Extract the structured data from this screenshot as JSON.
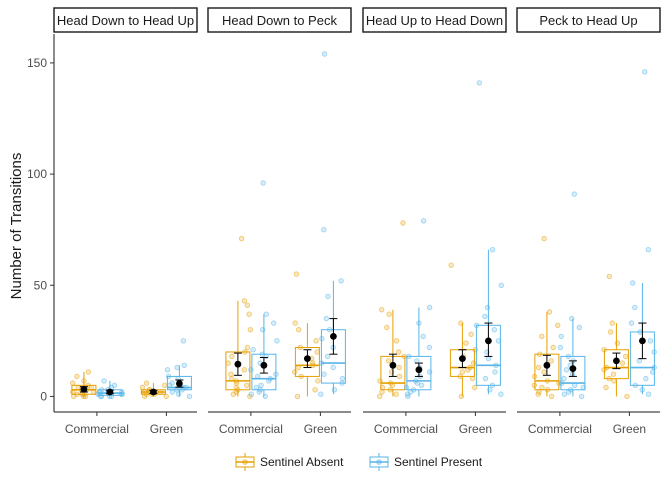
{
  "chart_data": {
    "type": "box",
    "ylabel": "Number of Transitions",
    "xlabel": "",
    "ylim": [
      -7,
      163
    ],
    "yticks": [
      0,
      50,
      100,
      150
    ],
    "categories": [
      "Commercial",
      "Green"
    ],
    "legend": {
      "placement": "bottom",
      "entries": [
        {
          "name": "Sentinel Absent",
          "color": "#E69F00"
        },
        {
          "name": "Sentinel Present",
          "color": "#56B4E9"
        }
      ]
    },
    "mean_color": "#000000",
    "panels": [
      {
        "title": "Head Down to Head Up",
        "groups": [
          {
            "category": "Commercial",
            "series": "Sentinel Absent",
            "box": {
              "min": 0,
              "q1": 1,
              "median": 3,
              "q3": 5,
              "max": 11
            },
            "mean": 3.2,
            "ci": [
              2.0,
              4.4
            ],
            "points": [
              0,
              0,
              0,
              1,
              1,
              1,
              2,
              2,
              3,
              3,
              4,
              4,
              5,
              6,
              7,
              9,
              11
            ]
          },
          {
            "category": "Commercial",
            "series": "Sentinel Present",
            "box": {
              "min": 0,
              "q1": 0.5,
              "median": 1.5,
              "q3": 3,
              "max": 7
            },
            "mean": 2.0,
            "ci": [
              1.2,
              2.8
            ],
            "points": [
              0,
              0,
              0,
              0,
              1,
              1,
              1,
              2,
              2,
              2,
              3,
              3,
              4,
              5,
              7
            ]
          },
          {
            "category": "Green",
            "series": "Sentinel Absent",
            "box": {
              "min": 0,
              "q1": 1,
              "median": 2,
              "q3": 3,
              "max": 6
            },
            "mean": 2.0,
            "ci": [
              1.3,
              2.7
            ],
            "points": [
              0,
              0,
              1,
              1,
              1,
              2,
              2,
              2,
              3,
              3,
              4,
              5,
              6
            ]
          },
          {
            "category": "Green",
            "series": "Sentinel Present",
            "box": {
              "min": 0,
              "q1": 3,
              "median": 4,
              "q3": 9,
              "max": 14
            },
            "mean": 5.8,
            "ci": [
              4.2,
              7.4
            ],
            "points": [
              0,
              1,
              2,
              3,
              3,
              4,
              4,
              5,
              6,
              8,
              9,
              12,
              13,
              14,
              25
            ]
          }
        ]
      },
      {
        "title": "Head Down to Peck",
        "groups": [
          {
            "category": "Commercial",
            "series": "Sentinel Absent",
            "box": {
              "min": 0,
              "q1": 3,
              "median": 7,
              "q3": 20,
              "max": 43
            },
            "mean": 14.5,
            "ci": [
              9.5,
              19.5
            ],
            "points": [
              0,
              1,
              2,
              3,
              4,
              5,
              6,
              7,
              8,
              10,
              12,
              15,
              18,
              20,
              22,
              30,
              37,
              41,
              43,
              71
            ]
          },
          {
            "category": "Commercial",
            "series": "Sentinel Present",
            "box": {
              "min": 0,
              "q1": 3,
              "median": 8,
              "q3": 19,
              "max": 37
            },
            "mean": 14.0,
            "ci": [
              10.5,
              17.5
            ],
            "points": [
              0,
              1,
              2,
              3,
              4,
              5,
              7,
              8,
              9,
              10,
              12,
              15,
              18,
              19,
              21,
              25,
              30,
              33,
              37,
              96
            ]
          },
          {
            "category": "Green",
            "series": "Sentinel Absent",
            "box": {
              "min": 0,
              "q1": 9,
              "median": 14,
              "q3": 22,
              "max": 33
            },
            "mean": 17.0,
            "ci": [
              13.0,
              21.0
            ],
            "points": [
              0,
              3,
              7,
              9,
              11,
              13,
              14,
              15,
              17,
              20,
              22,
              25,
              30,
              33,
              55
            ]
          },
          {
            "category": "Green",
            "series": "Sentinel Present",
            "box": {
              "min": 1,
              "q1": 6,
              "median": 15,
              "q3": 30,
              "max": 52
            },
            "mean": 27.0,
            "ci": [
              19.0,
              35.0
            ],
            "points": [
              1,
              3,
              6,
              8,
              10,
              13,
              15,
              18,
              22,
              26,
              30,
              35,
              45,
              52,
              75,
              154
            ]
          }
        ]
      },
      {
        "title": "Head Up to Head Down",
        "groups": [
          {
            "category": "Commercial",
            "series": "Sentinel Absent",
            "box": {
              "min": 0,
              "q1": 3,
              "median": 6,
              "q3": 18,
              "max": 39
            },
            "mean": 14.0,
            "ci": [
              9.0,
              19.0
            ],
            "points": [
              0,
              1,
              2,
              3,
              4,
              5,
              6,
              7,
              9,
              11,
              13,
              16,
              18,
              20,
              25,
              31,
              37,
              39,
              78
            ]
          },
          {
            "category": "Commercial",
            "series": "Sentinel Present",
            "box": {
              "min": 0,
              "q1": 3,
              "median": 7,
              "q3": 18,
              "max": 40
            },
            "mean": 12.0,
            "ci": [
              9.0,
              15.0
            ],
            "points": [
              0,
              1,
              2,
              3,
              4,
              5,
              6,
              7,
              9,
              11,
              13,
              16,
              18,
              22,
              27,
              33,
              40,
              79
            ]
          },
          {
            "category": "Green",
            "series": "Sentinel Absent",
            "box": {
              "min": 0,
              "q1": 9,
              "median": 13,
              "q3": 21,
              "max": 33
            },
            "mean": 17.0,
            "ci": [
              13.0,
              21.0
            ],
            "points": [
              0,
              4,
              8,
              9,
              11,
              12,
              13,
              15,
              18,
              21,
              24,
              28,
              33,
              59
            ]
          },
          {
            "category": "Green",
            "series": "Sentinel Present",
            "box": {
              "min": 1,
              "q1": 5,
              "median": 14,
              "q3": 32,
              "max": 66
            },
            "mean": 25.0,
            "ci": [
              18.0,
              33.0
            ],
            "points": [
              1,
              3,
              5,
              8,
              11,
              14,
              17,
              20,
              25,
              30,
              32,
              36,
              40,
              50,
              66,
              141
            ]
          }
        ]
      },
      {
        "title": "Peck to Head Up",
        "groups": [
          {
            "category": "Commercial",
            "series": "Sentinel Absent",
            "box": {
              "min": 0,
              "q1": 3,
              "median": 7,
              "q3": 19,
              "max": 38
            },
            "mean": 14.0,
            "ci": [
              9.5,
              18.5
            ],
            "points": [
              0,
              1,
              2,
              3,
              4,
              5,
              6,
              7,
              9,
              11,
              13,
              16,
              19,
              22,
              27,
              32,
              38,
              71
            ]
          },
          {
            "category": "Commercial",
            "series": "Sentinel Present",
            "box": {
              "min": 0,
              "q1": 3,
              "median": 6,
              "q3": 18,
              "max": 35
            },
            "mean": 12.5,
            "ci": [
              9.0,
              16.0
            ],
            "points": [
              0,
              1,
              2,
              3,
              4,
              5,
              6,
              8,
              10,
              12,
              14,
              16,
              18,
              22,
              27,
              31,
              35,
              91
            ]
          },
          {
            "category": "Green",
            "series": "Sentinel Absent",
            "box": {
              "min": 0,
              "q1": 8,
              "median": 13,
              "q3": 21,
              "max": 33
            },
            "mean": 16.0,
            "ci": [
              12.5,
              19.5
            ],
            "points": [
              0,
              4,
              7,
              8,
              10,
              12,
              13,
              15,
              18,
              21,
              24,
              29,
              33,
              54
            ]
          },
          {
            "category": "Green",
            "series": "Sentinel Present",
            "box": {
              "min": 1,
              "q1": 5,
              "median": 13,
              "q3": 29,
              "max": 51
            },
            "mean": 25.0,
            "ci": [
              17.0,
              33.0
            ],
            "points": [
              1,
              3,
              5,
              8,
              11,
              13,
              16,
              20,
              25,
              29,
              33,
              40,
              51,
              66,
              146
            ]
          }
        ]
      }
    ]
  }
}
